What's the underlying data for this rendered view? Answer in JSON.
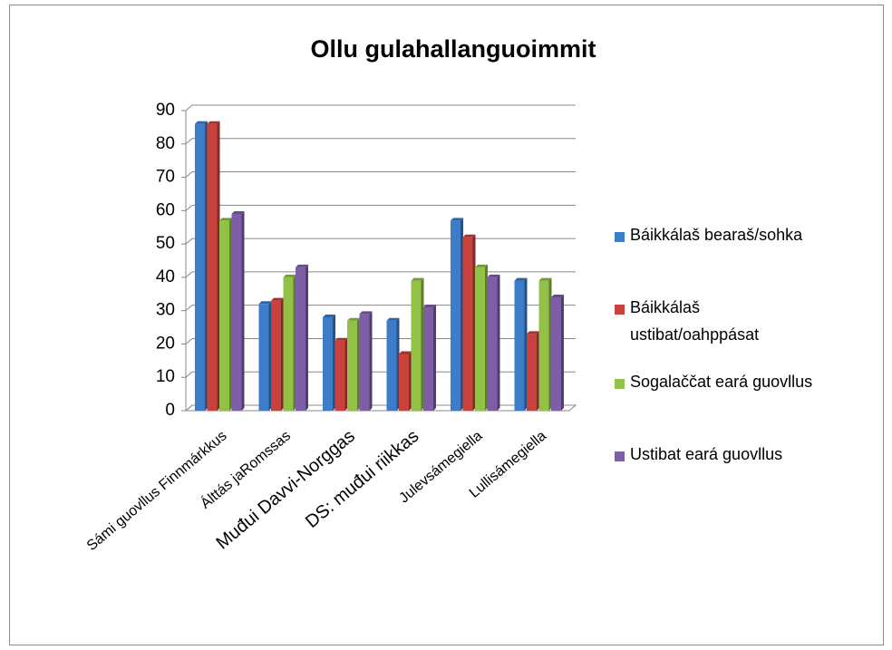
{
  "chart_data": {
    "type": "bar",
    "title": "Ollu gulahallanguoimmit",
    "categories": [
      "Sámi guovllus Finnmárkkus",
      "Álttás jaRomssas",
      "Muđui Davvi-Norggas",
      "DS: muđui riikkas",
      "Julevsámegiella",
      "Lullisámegiella"
    ],
    "series": [
      {
        "name": "Báikkálaš bearaš/sohka",
        "color": "#3d7cc9",
        "values": [
          86,
          32,
          28,
          27,
          57,
          39
        ]
      },
      {
        "name": "Báikkálaš ustibat/oahppásat",
        "color": "#c8413d",
        "values": [
          86,
          33,
          21,
          17,
          52,
          23
        ]
      },
      {
        "name": "Sogalaččat eará guovllus",
        "color": "#93c047",
        "values": [
          57,
          40,
          27,
          39,
          43,
          39
        ]
      },
      {
        "name": "Ustibat eará guovllus",
        "color": "#7f5ea8",
        "values": [
          59,
          43,
          29,
          31,
          40,
          34
        ]
      }
    ],
    "ylim": [
      0,
      90
    ],
    "yticks": [
      0,
      10,
      20,
      30,
      40,
      50,
      60,
      70,
      80,
      90
    ],
    "grid": true,
    "legend": "right"
  }
}
